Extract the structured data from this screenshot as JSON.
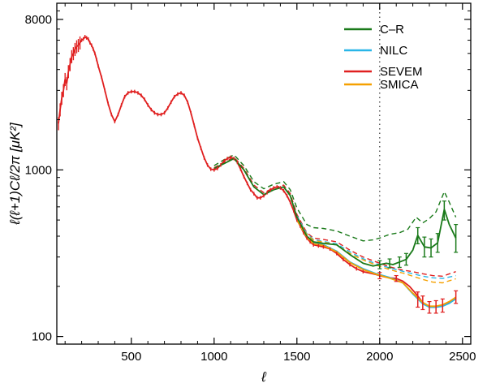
{
  "chart_data": {
    "type": "line",
    "title": "",
    "xlabel": "ℓ",
    "ylabel": "ℓ(ℓ+1)Cℓ/2π   [μK²]",
    "xlim": [
      50,
      2550
    ],
    "ylim": [
      90,
      10000
    ],
    "yscale": "log",
    "x_ticks": [
      500,
      1000,
      1500,
      2000,
      2500
    ],
    "x_tick_labels": [
      "500",
      "1000",
      "1500",
      "2000",
      "2500"
    ],
    "y_ticks": [
      100,
      1000,
      8000
    ],
    "y_tick_labels": [
      "100",
      "1000",
      "8000"
    ],
    "reference_line": {
      "x": 2000,
      "style": "dotted"
    },
    "legend": {
      "position": "top-right",
      "entries": [
        {
          "label": "C–R",
          "color": "#1a7a1a"
        },
        {
          "label": "NILC",
          "color": "#29b6e8"
        },
        {
          "label": "SEVEM",
          "color": "#e02020"
        },
        {
          "label": "SMICA",
          "color": "#f5a000"
        }
      ]
    },
    "series": [
      {
        "name": "SEVEM",
        "color": "#e02020",
        "style": "solid",
        "x": [
          60,
          70,
          80,
          90,
          100,
          110,
          120,
          130,
          140,
          150,
          160,
          170,
          180,
          190,
          200,
          210,
          220,
          230,
          240,
          250,
          260,
          270,
          280,
          290,
          300,
          320,
          340,
          360,
          380,
          400,
          420,
          440,
          460,
          480,
          500,
          520,
          540,
          560,
          580,
          600,
          620,
          640,
          660,
          680,
          700,
          720,
          740,
          760,
          780,
          800,
          820,
          840,
          860,
          880,
          900,
          920,
          940,
          960,
          980,
          1000,
          1020,
          1040,
          1060,
          1080,
          1100,
          1120,
          1140,
          1160,
          1180,
          1200,
          1220,
          1240,
          1260,
          1280,
          1300,
          1320,
          1340,
          1360,
          1380,
          1400,
          1420,
          1440,
          1460,
          1480,
          1500,
          1520,
          1540,
          1560,
          1580,
          1600,
          1630,
          1660,
          1700,
          1740,
          1780,
          1820,
          1860,
          1900,
          1940,
          1980,
          2000,
          2030,
          2060,
          2100,
          2140,
          2180,
          2220,
          2260,
          2300,
          2340,
          2380,
          2420,
          2460
        ],
        "values": [
          1900,
          2300,
          2700,
          3000,
          3500,
          3300,
          3900,
          4300,
          4800,
          5000,
          5300,
          5500,
          5600,
          5800,
          6000,
          6100,
          6300,
          6200,
          6100,
          5800,
          5600,
          5300,
          5000,
          4600,
          4200,
          3600,
          3000,
          2500,
          2150,
          1950,
          2150,
          2450,
          2750,
          2900,
          2950,
          2950,
          2900,
          2800,
          2650,
          2450,
          2300,
          2200,
          2150,
          2150,
          2200,
          2350,
          2550,
          2750,
          2850,
          2900,
          2800,
          2550,
          2200,
          1850,
          1550,
          1350,
          1180,
          1070,
          1010,
          1000,
          1020,
          1070,
          1130,
          1170,
          1190,
          1170,
          1110,
          1010,
          910,
          830,
          760,
          720,
          680,
          680,
          700,
          730,
          760,
          780,
          790,
          780,
          750,
          700,
          640,
          570,
          500,
          460,
          420,
          390,
          370,
          355,
          350,
          345,
          335,
          315,
          290,
          270,
          255,
          245,
          240,
          235,
          232,
          228,
          225,
          223,
          215,
          200,
          180,
          160,
          150,
          150,
          153,
          160,
          172
        ],
        "error_bars": [
          {
            "x": 2000,
            "value": 232,
            "low": 222,
            "high": 242
          },
          {
            "x": 2100,
            "value": 223,
            "low": 214,
            "high": 232
          },
          {
            "x": 2230,
            "value": 170,
            "low": 150,
            "high": 185
          },
          {
            "x": 2260,
            "value": 160,
            "low": 145,
            "high": 175
          },
          {
            "x": 2300,
            "value": 150,
            "low": 138,
            "high": 162
          },
          {
            "x": 2340,
            "value": 150,
            "low": 138,
            "high": 164
          },
          {
            "x": 2380,
            "value": 153,
            "low": 140,
            "high": 168
          },
          {
            "x": 2460,
            "value": 172,
            "low": 158,
            "high": 188
          }
        ]
      },
      {
        "name": "NILC",
        "color": "#29b6e8",
        "style": "solid",
        "x": [
          1500,
          1560,
          1600,
          1660,
          1740,
          1820,
          1900,
          1980,
          2060,
          2140,
          2200,
          2260,
          2300,
          2340,
          2380,
          2420,
          2460
        ],
        "values": [
          510,
          400,
          365,
          355,
          325,
          280,
          255,
          238,
          226,
          210,
          180,
          157,
          150,
          150,
          152,
          158,
          168
        ]
      },
      {
        "name": "SMICA",
        "color": "#f5a000",
        "style": "solid",
        "x": [
          1500,
          1560,
          1600,
          1660,
          1740,
          1820,
          1900,
          1980,
          2060,
          2140,
          2200,
          2260,
          2300,
          2340,
          2380,
          2420,
          2460
        ],
        "values": [
          500,
          395,
          360,
          352,
          322,
          278,
          252,
          236,
          224,
          210,
          182,
          160,
          152,
          152,
          155,
          162,
          172
        ]
      },
      {
        "name": "C–R",
        "color": "#1a7a1a",
        "style": "solid",
        "x": [
          1000,
          1060,
          1120,
          1180,
          1240,
          1300,
          1360,
          1420,
          1460,
          1500,
          1560,
          1600,
          1660,
          1740,
          1820,
          1900,
          1960,
          2000,
          2040,
          2080,
          2120,
          2160,
          2200,
          2230,
          2270,
          2310,
          2350,
          2390,
          2420,
          2460
        ],
        "values": [
          1020,
          1090,
          1170,
          1000,
          790,
          710,
          760,
          790,
          700,
          520,
          400,
          370,
          362,
          355,
          310,
          275,
          265,
          270,
          275,
          270,
          280,
          290,
          330,
          405,
          345,
          340,
          365,
          580,
          470,
          390
        ],
        "error_bars": [
          {
            "x": 2000,
            "value": 270,
            "low": 255,
            "high": 285
          },
          {
            "x": 2060,
            "value": 275,
            "low": 258,
            "high": 292
          },
          {
            "x": 2120,
            "value": 280,
            "low": 260,
            "high": 300
          },
          {
            "x": 2160,
            "value": 290,
            "low": 268,
            "high": 315
          },
          {
            "x": 2230,
            "value": 405,
            "low": 360,
            "high": 450
          },
          {
            "x": 2270,
            "value": 345,
            "low": 300,
            "high": 395
          },
          {
            "x": 2310,
            "value": 340,
            "low": 300,
            "high": 385
          },
          {
            "x": 2350,
            "value": 365,
            "low": 320,
            "high": 415
          },
          {
            "x": 2390,
            "value": 580,
            "low": 500,
            "high": 650
          },
          {
            "x": 2460,
            "value": 390,
            "low": 320,
            "high": 470
          }
        ]
      },
      {
        "name": "C–R (noise)",
        "color": "#1a7a1a",
        "style": "dashed",
        "x": [
          1000,
          1060,
          1120,
          1180,
          1240,
          1300,
          1360,
          1420,
          1460,
          1500,
          1560,
          1600,
          1660,
          1740,
          1820,
          1900,
          1960,
          2000,
          2060,
          2120,
          2170,
          2220,
          2260,
          2300,
          2340,
          2390,
          2420,
          2460
        ],
        "values": [
          1060,
          1150,
          1230,
          1060,
          850,
          770,
          820,
          850,
          760,
          590,
          470,
          450,
          445,
          430,
          400,
          375,
          380,
          390,
          410,
          420,
          440,
          520,
          480,
          510,
          560,
          740,
          640,
          520
        ]
      },
      {
        "name": "SEVEM (noise)",
        "color": "#e02020",
        "style": "dashed",
        "x": [
          1000,
          1060,
          1120,
          1180,
          1240,
          1300,
          1360,
          1420,
          1460,
          1500,
          1560,
          1600,
          1660,
          1740,
          1820,
          1900,
          1980,
          2060,
          2140,
          2200,
          2260,
          2320,
          2380,
          2460
        ],
        "values": [
          1030,
          1110,
          1190,
          1020,
          810,
          730,
          780,
          810,
          720,
          540,
          420,
          390,
          382,
          370,
          330,
          300,
          280,
          262,
          250,
          245,
          238,
          232,
          230,
          245
        ]
      },
      {
        "name": "NILC (noise)",
        "color": "#29b6e8",
        "style": "dashed",
        "x": [
          1500,
          1560,
          1600,
          1660,
          1740,
          1820,
          1900,
          1980,
          2060,
          2140,
          2200,
          2260,
          2320,
          2380,
          2460
        ],
        "values": [
          530,
          415,
          382,
          372,
          360,
          322,
          293,
          273,
          258,
          246,
          238,
          230,
          225,
          223,
          232
        ]
      },
      {
        "name": "SMICA (noise)",
        "color": "#f5a000",
        "style": "dashed",
        "x": [
          1500,
          1560,
          1600,
          1660,
          1740,
          1820,
          1900,
          1980,
          2060,
          2140,
          2200,
          2260,
          2320,
          2380,
          2460
        ],
        "values": [
          520,
          410,
          378,
          368,
          355,
          315,
          288,
          268,
          252,
          240,
          230,
          220,
          212,
          210,
          222
        ]
      }
    ]
  }
}
